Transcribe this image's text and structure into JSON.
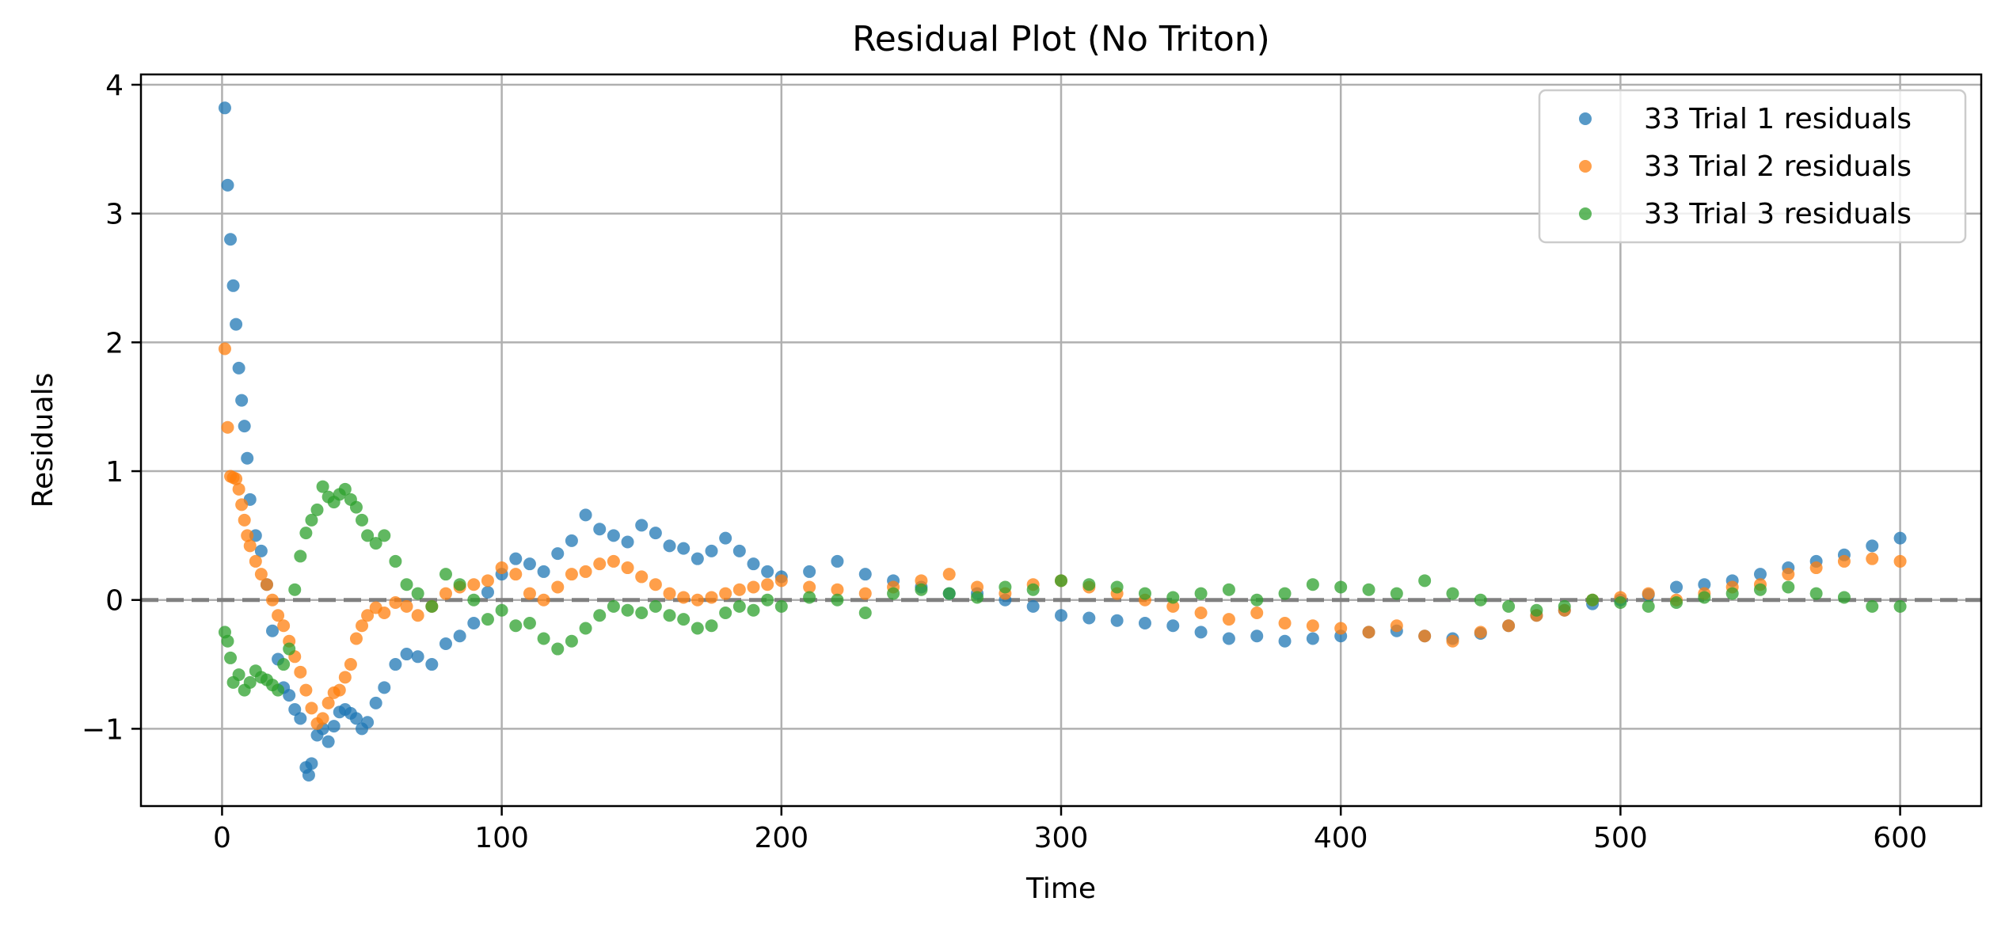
{
  "chart_data": {
    "type": "scatter",
    "title": "Residual Plot (No Triton)",
    "xlabel": "Time",
    "ylabel": "Residuals",
    "xlim": [
      -29,
      629
    ],
    "ylim": [
      -1.6,
      4.08
    ],
    "xticks": [
      0,
      100,
      200,
      300,
      400,
      500,
      600
    ],
    "yticks": [
      -1,
      0,
      1,
      2,
      3,
      4
    ],
    "xtick_labels": [
      "0",
      "100",
      "200",
      "300",
      "400",
      "500",
      "600"
    ],
    "ytick_labels": [
      "−1",
      "0",
      "1",
      "2",
      "3",
      "4"
    ],
    "grid": true,
    "legend_position": "top-right",
    "reference_line": {
      "y": 0,
      "style": "dashed",
      "color": "#808080"
    },
    "series": [
      {
        "name": "33 Trial 1 residuals",
        "color": "#1f77b4",
        "x": [
          1,
          2,
          3,
          4,
          5,
          6,
          7,
          8,
          9,
          10,
          12,
          14,
          16,
          18,
          20,
          22,
          24,
          26,
          28,
          30,
          31,
          32,
          34,
          36,
          38,
          40,
          42,
          44,
          46,
          48,
          50,
          52,
          55,
          58,
          62,
          66,
          70,
          75,
          80,
          85,
          90,
          95,
          100,
          105,
          110,
          115,
          120,
          125,
          130,
          135,
          140,
          145,
          150,
          155,
          160,
          165,
          170,
          175,
          180,
          185,
          190,
          195,
          200,
          210,
          220,
          230,
          240,
          250,
          260,
          270,
          280,
          290,
          300,
          310,
          320,
          330,
          340,
          350,
          360,
          370,
          380,
          390,
          400,
          410,
          420,
          430,
          440,
          450,
          460,
          470,
          480,
          490,
          500,
          510,
          520,
          530,
          540,
          550,
          560,
          570,
          580,
          590,
          600
        ],
        "y": [
          3.82,
          3.22,
          2.8,
          2.44,
          2.14,
          1.8,
          1.55,
          1.35,
          1.1,
          0.78,
          0.5,
          0.38,
          0.12,
          -0.24,
          -0.46,
          -0.68,
          -0.74,
          -0.85,
          -0.92,
          -1.3,
          -1.36,
          -1.27,
          -1.05,
          -1.0,
          -1.1,
          -0.98,
          -0.87,
          -0.85,
          -0.88,
          -0.92,
          -1.0,
          -0.95,
          -0.8,
          -0.68,
          -0.5,
          -0.42,
          -0.44,
          -0.5,
          -0.34,
          -0.28,
          -0.18,
          0.06,
          0.2,
          0.32,
          0.28,
          0.22,
          0.36,
          0.46,
          0.66,
          0.55,
          0.5,
          0.45,
          0.58,
          0.52,
          0.42,
          0.4,
          0.32,
          0.38,
          0.48,
          0.38,
          0.28,
          0.22,
          0.18,
          0.22,
          0.3,
          0.2,
          0.15,
          0.1,
          0.05,
          0.05,
          0.0,
          -0.05,
          -0.12,
          -0.14,
          -0.16,
          -0.18,
          -0.2,
          -0.25,
          -0.3,
          -0.28,
          -0.32,
          -0.3,
          -0.28,
          -0.25,
          -0.24,
          -0.28,
          -0.3,
          -0.26,
          -0.2,
          -0.12,
          -0.08,
          -0.03,
          0.0,
          0.04,
          0.1,
          0.12,
          0.15,
          0.2,
          0.25,
          0.3,
          0.35,
          0.42,
          0.48
        ]
      },
      {
        "name": "33 Trial 2 residuals",
        "color": "#ff7f0e",
        "x": [
          1,
          2,
          3,
          4,
          5,
          6,
          7,
          8,
          9,
          10,
          12,
          14,
          16,
          18,
          20,
          22,
          24,
          26,
          28,
          30,
          32,
          34,
          36,
          38,
          40,
          42,
          44,
          46,
          48,
          50,
          52,
          55,
          58,
          62,
          66,
          70,
          75,
          80,
          85,
          90,
          95,
          100,
          105,
          110,
          115,
          120,
          125,
          130,
          135,
          140,
          145,
          150,
          155,
          160,
          165,
          170,
          175,
          180,
          185,
          190,
          195,
          200,
          210,
          220,
          230,
          240,
          250,
          260,
          270,
          280,
          290,
          300,
          310,
          320,
          330,
          340,
          350,
          360,
          370,
          380,
          390,
          400,
          410,
          420,
          430,
          440,
          450,
          460,
          470,
          480,
          490,
          500,
          510,
          520,
          530,
          540,
          550,
          560,
          570,
          580,
          590,
          600
        ],
        "y": [
          1.95,
          1.34,
          0.96,
          0.95,
          0.94,
          0.86,
          0.74,
          0.62,
          0.5,
          0.42,
          0.3,
          0.2,
          0.12,
          0.0,
          -0.12,
          -0.2,
          -0.32,
          -0.44,
          -0.56,
          -0.7,
          -0.84,
          -0.96,
          -0.92,
          -0.8,
          -0.72,
          -0.7,
          -0.6,
          -0.5,
          -0.3,
          -0.2,
          -0.12,
          -0.06,
          -0.1,
          -0.02,
          -0.05,
          -0.12,
          -0.05,
          0.05,
          0.1,
          0.12,
          0.15,
          0.25,
          0.2,
          0.05,
          0.0,
          0.1,
          0.2,
          0.22,
          0.28,
          0.3,
          0.25,
          0.18,
          0.12,
          0.05,
          0.02,
          0.0,
          0.02,
          0.05,
          0.08,
          0.1,
          0.12,
          0.15,
          0.1,
          0.08,
          0.05,
          0.1,
          0.15,
          0.2,
          0.1,
          0.05,
          0.12,
          0.15,
          0.1,
          0.05,
          0.0,
          -0.05,
          -0.1,
          -0.15,
          -0.1,
          -0.18,
          -0.2,
          -0.22,
          -0.25,
          -0.2,
          -0.28,
          -0.32,
          -0.25,
          -0.2,
          -0.12,
          -0.08,
          0.0,
          0.02,
          0.05,
          0.0,
          0.05,
          0.1,
          0.12,
          0.2,
          0.25,
          0.3,
          0.32,
          0.3
        ]
      },
      {
        "name": "33 Trial 3 residuals",
        "color": "#2ca02c",
        "x": [
          1,
          2,
          3,
          4,
          6,
          8,
          10,
          12,
          14,
          16,
          18,
          20,
          22,
          24,
          26,
          28,
          30,
          32,
          34,
          36,
          38,
          40,
          42,
          44,
          46,
          48,
          50,
          52,
          55,
          58,
          62,
          66,
          70,
          75,
          80,
          85,
          90,
          95,
          100,
          105,
          110,
          115,
          120,
          125,
          130,
          135,
          140,
          145,
          150,
          155,
          160,
          165,
          170,
          175,
          180,
          185,
          190,
          195,
          200,
          210,
          220,
          230,
          240,
          250,
          260,
          270,
          280,
          290,
          300,
          310,
          320,
          330,
          340,
          350,
          360,
          370,
          380,
          390,
          400,
          410,
          420,
          430,
          440,
          450,
          460,
          470,
          480,
          490,
          500,
          510,
          520,
          530,
          540,
          550,
          560,
          570,
          580,
          590,
          600
        ],
        "y": [
          -0.25,
          -0.32,
          -0.45,
          -0.64,
          -0.58,
          -0.7,
          -0.64,
          -0.55,
          -0.6,
          -0.62,
          -0.66,
          -0.7,
          -0.5,
          -0.38,
          0.08,
          0.34,
          0.52,
          0.62,
          0.7,
          0.88,
          0.8,
          0.76,
          0.82,
          0.86,
          0.78,
          0.72,
          0.62,
          0.5,
          0.44,
          0.5,
          0.3,
          0.12,
          0.05,
          -0.05,
          0.2,
          0.12,
          0.0,
          -0.15,
          -0.08,
          -0.2,
          -0.18,
          -0.3,
          -0.38,
          -0.32,
          -0.22,
          -0.12,
          -0.05,
          -0.08,
          -0.1,
          -0.05,
          -0.12,
          -0.15,
          -0.22,
          -0.2,
          -0.1,
          -0.05,
          -0.08,
          0.0,
          -0.05,
          0.02,
          0.0,
          -0.1,
          0.05,
          0.08,
          0.05,
          0.02,
          0.1,
          0.08,
          0.15,
          0.12,
          0.1,
          0.05,
          0.02,
          0.05,
          0.08,
          0.0,
          0.05,
          0.12,
          0.1,
          0.08,
          0.05,
          0.15,
          0.05,
          0.0,
          -0.05,
          -0.08,
          -0.05,
          0.0,
          -0.02,
          -0.05,
          -0.02,
          0.02,
          0.05,
          0.08,
          0.1,
          0.05,
          0.02,
          -0.05,
          -0.05
        ]
      }
    ]
  }
}
